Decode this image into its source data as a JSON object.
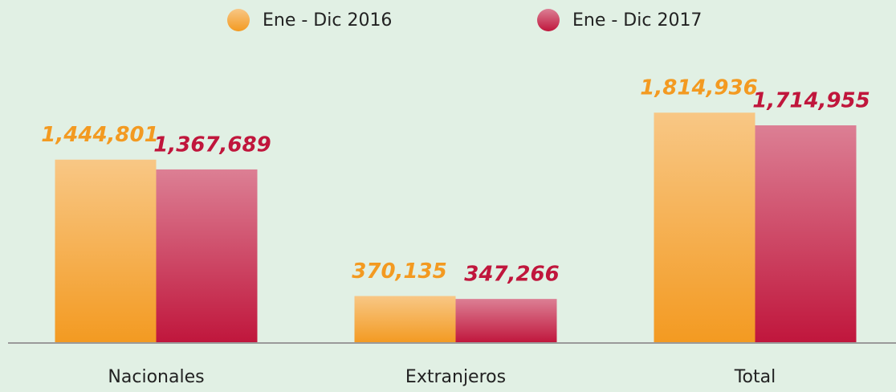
{
  "chart_data": {
    "type": "bar",
    "categories": [
      "Nacionales",
      "Extranjeros",
      "Total"
    ],
    "series": [
      {
        "name": "Ene - Dic 2016",
        "color": "#f39a21",
        "values": [
          1444801,
          370135,
          1814936
        ],
        "value_labels": [
          "1,444,801",
          "370,135",
          "1,814,936"
        ]
      },
      {
        "name": "Ene - Dic 2017",
        "color": "#c0163c",
        "values": [
          1367689,
          347266,
          1714955
        ],
        "value_labels": [
          "1,367,689",
          "347,266",
          "1,714,955"
        ]
      }
    ],
    "ylim": [
      0,
      2500000
    ]
  }
}
